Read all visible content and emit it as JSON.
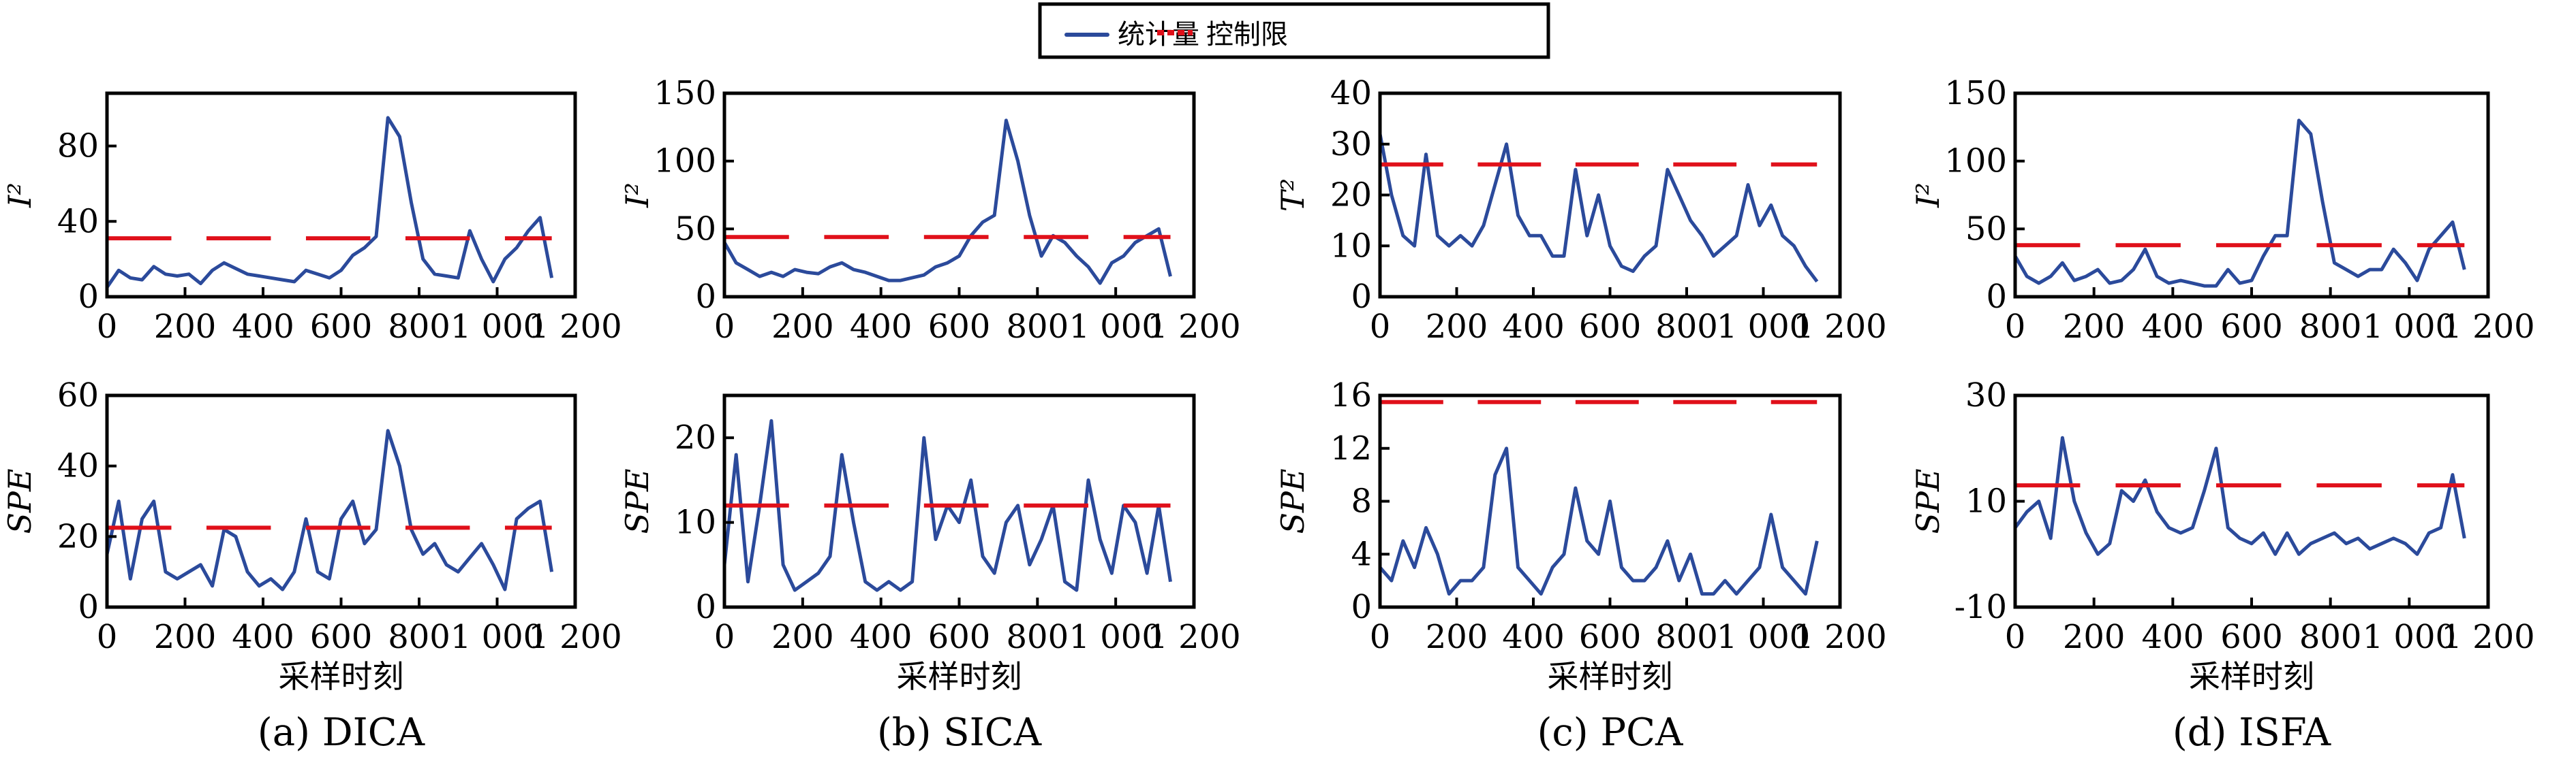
{
  "legend": {
    "series_label": "统计量",
    "limit_label": "控制限",
    "series_color": "#2b4a9b",
    "limit_color": "#e0101a"
  },
  "chart_data": [
    {
      "type": "line",
      "panel": "a",
      "caption": "(a) DICA",
      "xlabel": "",
      "ylabel": "I²",
      "xlim": [
        0,
        1200
      ],
      "ylim": [
        0,
        108
      ],
      "xticks": [
        "0",
        "200",
        "400",
        "600",
        "800",
        "1 000",
        "1 200"
      ],
      "yticks": [
        0,
        40,
        80
      ],
      "control_limit": 31,
      "x": [
        0,
        30,
        60,
        90,
        120,
        150,
        180,
        210,
        240,
        270,
        300,
        330,
        360,
        390,
        420,
        450,
        480,
        510,
        540,
        570,
        600,
        630,
        660,
        690,
        720,
        750,
        780,
        810,
        840,
        870,
        900,
        930,
        960,
        990,
        1020,
        1050,
        1080,
        1110,
        1140
      ],
      "y": [
        5,
        14,
        10,
        9,
        16,
        12,
        11,
        12,
        7,
        14,
        18,
        15,
        12,
        11,
        10,
        9,
        8,
        14,
        12,
        10,
        14,
        22,
        26,
        32,
        95,
        85,
        50,
        20,
        12,
        11,
        10,
        35,
        20,
        8,
        20,
        26,
        35,
        42,
        10
      ]
    },
    {
      "type": "line",
      "panel": "a",
      "caption": "",
      "xlabel": "采样时刻",
      "ylabel": "SPE",
      "xlim": [
        0,
        1200
      ],
      "ylim": [
        0,
        60
      ],
      "xticks": [
        "0",
        "200",
        "400",
        "600",
        "800",
        "1 000",
        "1 200"
      ],
      "yticks": [
        0,
        20,
        40,
        60
      ],
      "control_limit": 22.5,
      "x": [
        0,
        30,
        60,
        90,
        120,
        150,
        180,
        210,
        240,
        270,
        300,
        330,
        360,
        390,
        420,
        450,
        480,
        510,
        540,
        570,
        600,
        630,
        660,
        690,
        720,
        750,
        780,
        810,
        840,
        870,
        900,
        930,
        960,
        990,
        1020,
        1050,
        1080,
        1110,
        1140
      ],
      "y": [
        15,
        30,
        8,
        25,
        30,
        10,
        8,
        10,
        12,
        6,
        22,
        20,
        10,
        6,
        8,
        5,
        10,
        25,
        10,
        8,
        25,
        30,
        18,
        22,
        50,
        40,
        22,
        15,
        18,
        12,
        10,
        14,
        18,
        12,
        5,
        25,
        28,
        30,
        10
      ]
    },
    {
      "type": "line",
      "panel": "b",
      "caption": "(b) SICA",
      "xlabel": "",
      "ylabel": "I²",
      "xlim": [
        0,
        1200
      ],
      "ylim": [
        0,
        150
      ],
      "xticks": [
        "0",
        "200",
        "400",
        "600",
        "800",
        "1 000",
        "1 200"
      ],
      "yticks": [
        0,
        50,
        100,
        150
      ],
      "control_limit": 44,
      "x": [
        0,
        30,
        60,
        90,
        120,
        150,
        180,
        210,
        240,
        270,
        300,
        330,
        360,
        390,
        420,
        450,
        480,
        510,
        540,
        570,
        600,
        630,
        660,
        690,
        720,
        750,
        780,
        810,
        840,
        870,
        900,
        930,
        960,
        990,
        1020,
        1050,
        1080,
        1110,
        1140
      ],
      "y": [
        40,
        25,
        20,
        15,
        18,
        15,
        20,
        18,
        17,
        22,
        25,
        20,
        18,
        15,
        12,
        12,
        14,
        16,
        22,
        25,
        30,
        45,
        55,
        60,
        130,
        100,
        60,
        30,
        45,
        40,
        30,
        22,
        10,
        25,
        30,
        40,
        45,
        50,
        15
      ]
    },
    {
      "type": "line",
      "panel": "b",
      "caption": "",
      "xlabel": "采样时刻",
      "ylabel": "SPE",
      "xlim": [
        0,
        1200
      ],
      "ylim": [
        0,
        25
      ],
      "xticks": [
        "0",
        "200",
        "400",
        "600",
        "800",
        "1 000",
        "1 200"
      ],
      "yticks": [
        0,
        10,
        20
      ],
      "control_limit": 12,
      "x": [
        0,
        30,
        60,
        90,
        120,
        150,
        180,
        210,
        240,
        270,
        300,
        330,
        360,
        390,
        420,
        450,
        480,
        510,
        540,
        570,
        600,
        630,
        660,
        690,
        720,
        750,
        780,
        810,
        840,
        870,
        900,
        930,
        960,
        990,
        1020,
        1050,
        1080,
        1110,
        1140
      ],
      "y": [
        5,
        18,
        3,
        12,
        22,
        5,
        2,
        3,
        4,
        6,
        18,
        10,
        3,
        2,
        3,
        2,
        3,
        20,
        8,
        12,
        10,
        15,
        6,
        4,
        10,
        12,
        5,
        8,
        12,
        3,
        2,
        15,
        8,
        4,
        12,
        10,
        4,
        12,
        3
      ]
    },
    {
      "type": "line",
      "panel": "c",
      "caption": "(c) PCA",
      "xlabel": "",
      "ylabel": "T²",
      "xlim": [
        0,
        1200
      ],
      "ylim": [
        0,
        40
      ],
      "xticks": [
        "0",
        "200",
        "400",
        "600",
        "800",
        "1 000",
        "1 200"
      ],
      "yticks": [
        0,
        10,
        20,
        30,
        40
      ],
      "control_limit": 26,
      "x": [
        0,
        30,
        60,
        90,
        120,
        150,
        180,
        210,
        240,
        270,
        300,
        330,
        360,
        390,
        420,
        450,
        480,
        510,
        540,
        570,
        600,
        630,
        660,
        690,
        720,
        750,
        780,
        810,
        840,
        870,
        900,
        930,
        960,
        990,
        1020,
        1050,
        1080,
        1110,
        1140
      ],
      "y": [
        32,
        20,
        12,
        10,
        28,
        12,
        10,
        12,
        10,
        14,
        22,
        30,
        16,
        12,
        12,
        8,
        8,
        25,
        12,
        20,
        10,
        6,
        5,
        8,
        10,
        25,
        20,
        15,
        12,
        8,
        10,
        12,
        22,
        14,
        18,
        12,
        10,
        6,
        3
      ]
    },
    {
      "type": "line",
      "panel": "c",
      "caption": "",
      "xlabel": "采样时刻",
      "ylabel": "SPE",
      "xlim": [
        0,
        1200
      ],
      "ylim": [
        0,
        16
      ],
      "xticks": [
        "0",
        "200",
        "400",
        "600",
        "800",
        "1 000",
        "1 200"
      ],
      "yticks": [
        0,
        4,
        8,
        12,
        16
      ],
      "control_limit": 15.5,
      "x": [
        0,
        30,
        60,
        90,
        120,
        150,
        180,
        210,
        240,
        270,
        300,
        330,
        360,
        390,
        420,
        450,
        480,
        510,
        540,
        570,
        600,
        630,
        660,
        690,
        720,
        750,
        780,
        810,
        840,
        870,
        900,
        930,
        960,
        990,
        1020,
        1050,
        1080,
        1110,
        1140
      ],
      "y": [
        3,
        2,
        5,
        3,
        6,
        4,
        1,
        2,
        2,
        3,
        10,
        12,
        3,
        2,
        1,
        3,
        4,
        9,
        5,
        4,
        8,
        3,
        2,
        2,
        3,
        5,
        2,
        4,
        1,
        1,
        2,
        1,
        2,
        3,
        7,
        3,
        2,
        1,
        5
      ]
    },
    {
      "type": "line",
      "panel": "d",
      "caption": "(d) ISFA",
      "xlabel": "",
      "ylabel": "I²",
      "xlim": [
        0,
        1200
      ],
      "ylim": [
        0,
        150
      ],
      "xticks": [
        "0",
        "200",
        "400",
        "600",
        "800",
        "1 000",
        "1 200"
      ],
      "yticks": [
        0,
        50,
        100,
        150
      ],
      "control_limit": 38,
      "x": [
        0,
        30,
        60,
        90,
        120,
        150,
        180,
        210,
        240,
        270,
        300,
        330,
        360,
        390,
        420,
        450,
        480,
        510,
        540,
        570,
        600,
        630,
        660,
        690,
        720,
        750,
        780,
        810,
        840,
        870,
        900,
        930,
        960,
        990,
        1020,
        1050,
        1080,
        1110,
        1140
      ],
      "y": [
        30,
        15,
        10,
        15,
        25,
        12,
        15,
        20,
        10,
        12,
        20,
        35,
        15,
        10,
        12,
        10,
        8,
        8,
        20,
        10,
        12,
        30,
        45,
        45,
        130,
        120,
        70,
        25,
        20,
        15,
        20,
        20,
        35,
        25,
        12,
        35,
        45,
        55,
        20
      ]
    },
    {
      "type": "line",
      "panel": "d",
      "caption": "",
      "xlabel": "采样时刻",
      "ylabel": "SPE",
      "xlim": [
        0,
        1200
      ],
      "ylim": [
        -10,
        30
      ],
      "xticks": [
        "0",
        "200",
        "400",
        "600",
        "800",
        "1 000",
        "1 200"
      ],
      "yticks": [
        -10,
        10,
        30
      ],
      "control_limit": 13,
      "x": [
        0,
        30,
        60,
        90,
        120,
        150,
        180,
        210,
        240,
        270,
        300,
        330,
        360,
        390,
        420,
        450,
        480,
        510,
        540,
        570,
        600,
        630,
        660,
        690,
        720,
        750,
        780,
        810,
        840,
        870,
        900,
        930,
        960,
        990,
        1020,
        1050,
        1080,
        1110,
        1140
      ],
      "y": [
        5,
        8,
        10,
        3,
        22,
        10,
        4,
        0,
        2,
        12,
        10,
        14,
        8,
        5,
        4,
        5,
        12,
        20,
        5,
        3,
        2,
        4,
        0,
        4,
        0,
        2,
        3,
        4,
        2,
        3,
        1,
        2,
        3,
        2,
        0,
        4,
        5,
        15,
        3
      ]
    }
  ]
}
